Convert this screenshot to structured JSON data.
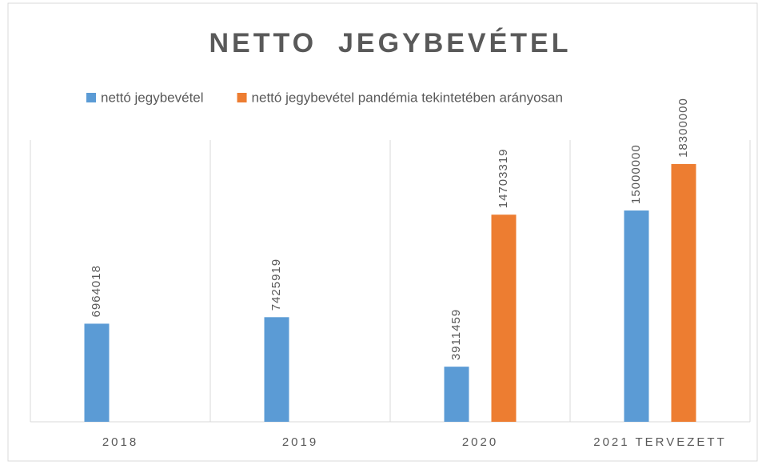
{
  "chart_data": {
    "type": "bar",
    "title": "NETTO  JEGYBEVÉTEL",
    "categories": [
      "2018",
      "2019",
      "2020",
      "2021 TERVEZETT"
    ],
    "series": [
      {
        "name": "nettó jegybevétel",
        "color": "#5b9bd5",
        "values": [
          6964018,
          7425919,
          3911459,
          15000000
        ]
      },
      {
        "name": "nettó jegybevétel pandémia tekintetében arányosan",
        "color": "#ed7d31",
        "values": [
          null,
          null,
          14703319,
          18300000
        ]
      }
    ],
    "ylim": [
      0,
      20000000
    ],
    "legend": "top"
  }
}
